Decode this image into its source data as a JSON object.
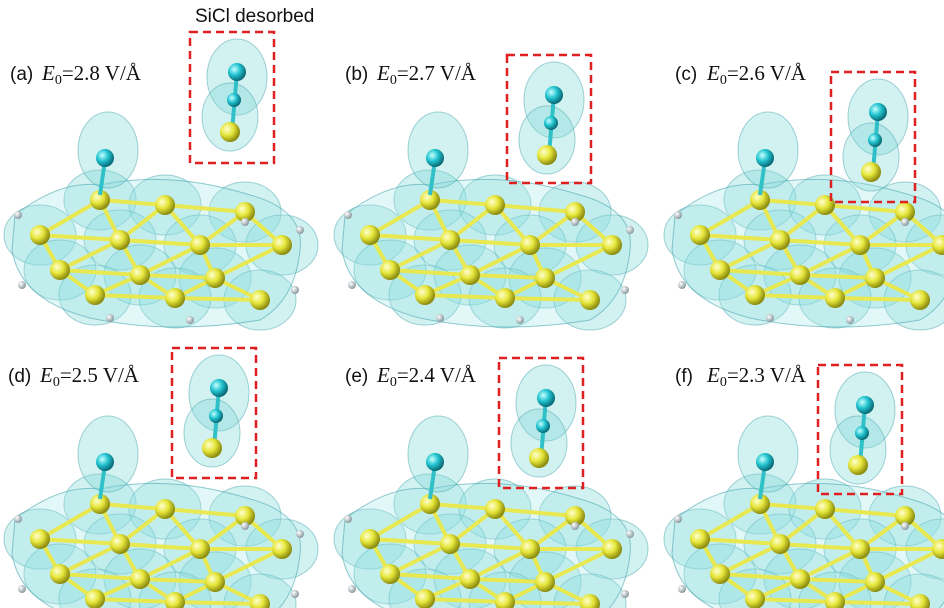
{
  "annotation": "SiCl desorbed",
  "panels": [
    {
      "label": "(a)",
      "field_symbol": "E",
      "field_subscript": "0",
      "field_value": "=2.8 V/Å"
    },
    {
      "label": "(b)",
      "field_symbol": "E",
      "field_subscript": "0",
      "field_value": "=2.7 V/Å"
    },
    {
      "label": "(c)",
      "field_symbol": "E",
      "field_subscript": "0",
      "field_value": "=2.6 V/Å"
    },
    {
      "label": "(d)",
      "field_symbol": "E",
      "field_subscript": "0",
      "field_value": "=2.5 V/Å"
    },
    {
      "label": "(e)",
      "field_symbol": "E",
      "field_subscript": "0",
      "field_value": "=2.4 V/Å"
    },
    {
      "label": "(f)",
      "field_symbol": "E",
      "field_subscript": "0",
      "field_value": "=2.3 V/Å"
    }
  ]
}
